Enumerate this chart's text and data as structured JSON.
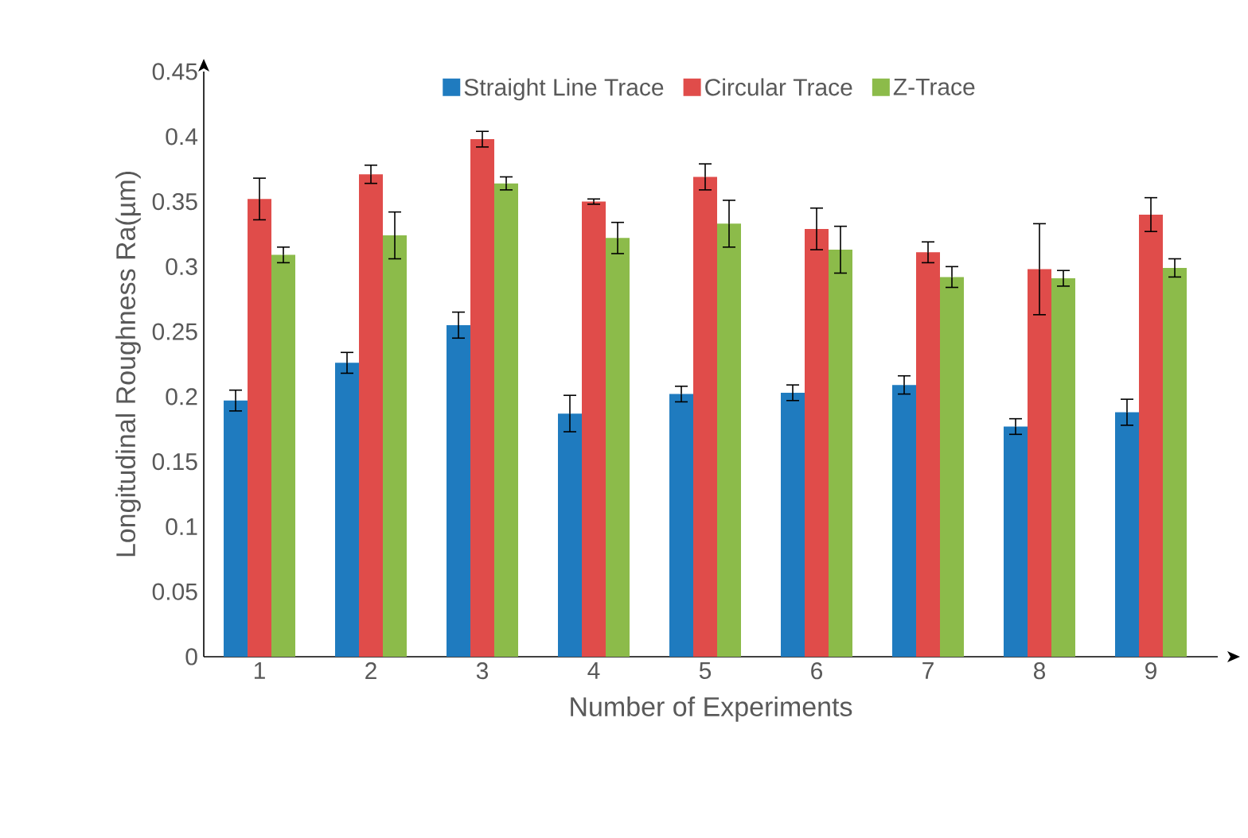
{
  "chart_data": {
    "type": "bar",
    "xlabel": "Number of Experiments",
    "ylabel": "Longitudinal Roughness Ra(µm)",
    "categories": [
      "1",
      "2",
      "3",
      "4",
      "5",
      "6",
      "7",
      "8",
      "9"
    ],
    "series": [
      {
        "name": "Straight Line Trace",
        "color": "#1f7bbf",
        "values": [
          0.197,
          0.226,
          0.255,
          0.187,
          0.202,
          0.203,
          0.209,
          0.177,
          0.188
        ],
        "errors": [
          0.008,
          0.008,
          0.01,
          0.014,
          0.006,
          0.006,
          0.007,
          0.006,
          0.01
        ]
      },
      {
        "name": "Circular Trace",
        "color": "#e04c4a",
        "values": [
          0.352,
          0.371,
          0.398,
          0.35,
          0.369,
          0.329,
          0.311,
          0.298,
          0.34
        ],
        "errors": [
          0.016,
          0.007,
          0.006,
          0.002,
          0.01,
          0.016,
          0.008,
          0.035,
          0.013
        ]
      },
      {
        "name": "Z-Trace",
        "color": "#8cbb4a",
        "values": [
          0.309,
          0.324,
          0.364,
          0.322,
          0.333,
          0.313,
          0.292,
          0.291,
          0.299
        ],
        "errors": [
          0.006,
          0.018,
          0.005,
          0.012,
          0.018,
          0.018,
          0.008,
          0.006,
          0.007
        ]
      }
    ],
    "ylim": [
      0,
      0.45
    ],
    "yticks": [
      0,
      0.05,
      0.1,
      0.15,
      0.2,
      0.25,
      0.3,
      0.35,
      0.4,
      0.45
    ],
    "legend": "top",
    "grid": false
  }
}
